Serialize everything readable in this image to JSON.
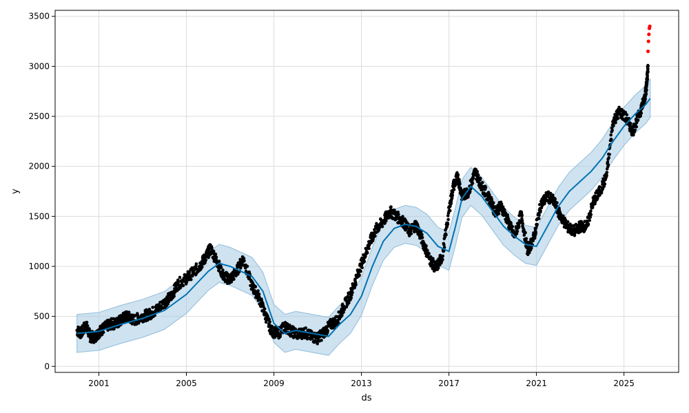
{
  "chart_data": {
    "type": "scatter",
    "xlabel": "ds",
    "ylabel": "y",
    "xlim": [
      1999.0,
      2027.5
    ],
    "ylim": [
      -60,
      3560
    ],
    "grid": true,
    "x_ticks": [
      {
        "value": 2001,
        "label": "2001"
      },
      {
        "value": 2005,
        "label": "2005"
      },
      {
        "value": 2009,
        "label": "2009"
      },
      {
        "value": 2013,
        "label": "2013"
      },
      {
        "value": 2017,
        "label": "2017"
      },
      {
        "value": 2021,
        "label": "2021"
      },
      {
        "value": 2025,
        "label": "2025"
      }
    ],
    "y_ticks": [
      {
        "value": 0,
        "label": "0"
      },
      {
        "value": 500,
        "label": "500"
      },
      {
        "value": 1000,
        "label": "1000"
      },
      {
        "value": 1500,
        "label": "1500"
      },
      {
        "value": 2000,
        "label": "2000"
      },
      {
        "value": 2500,
        "label": "2500"
      },
      {
        "value": 3000,
        "label": "3000"
      },
      {
        "value": 3500,
        "label": "3500"
      }
    ],
    "colors": {
      "observed": "#000000",
      "outlier": "#ff0000",
      "forecast_line": "#0072B2",
      "interval_fill": "#a6cbe3"
    },
    "series": [
      {
        "kind": "observed",
        "x": [
          2000.0,
          2000.2,
          2000.4,
          2000.6,
          2000.8,
          2001.0,
          2001.2,
          2001.5,
          2001.8,
          2002.0,
          2002.3,
          2002.6,
          2003.0,
          2003.3,
          2003.6,
          2004.0,
          2004.3,
          2004.6,
          2005.0,
          2005.3,
          2005.6,
          2005.9,
          2006.1,
          2006.4,
          2006.7,
          2007.0,
          2007.3,
          2007.6,
          2008.0,
          2008.3,
          2008.6,
          2008.9,
          2009.2,
          2009.5,
          2009.8,
          2010.1,
          2010.4,
          2010.7,
          2011.0,
          2011.3,
          2011.6,
          2011.9,
          2012.2,
          2012.5,
          2012.8,
          2013.1,
          2013.4,
          2013.7,
          2014.0,
          2014.3,
          2014.6,
          2014.9,
          2015.2,
          2015.5,
          2015.8,
          2016.1,
          2016.4,
          2016.7,
          2017.0,
          2017.2,
          2017.4,
          2017.6,
          2017.9,
          2018.2,
          2018.5,
          2018.8,
          2019.1,
          2019.4,
          2019.7,
          2020.0,
          2020.3,
          2020.6,
          2020.9,
          2021.2,
          2021.5,
          2021.8,
          2022.1,
          2022.4,
          2022.7,
          2023.0,
          2023.3,
          2023.6,
          2023.9,
          2024.2,
          2024.5,
          2024.8,
          2025.1,
          2025.4,
          2025.7,
          2025.9,
          2026.0,
          2026.05,
          2026.1
        ],
        "y": [
          360,
          330,
          420,
          300,
          290,
          340,
          380,
          420,
          430,
          470,
          500,
          460,
          500,
          520,
          560,
          640,
          700,
          820,
          880,
          940,
          1000,
          1100,
          1180,
          1050,
          900,
          870,
          950,
          1080,
          800,
          700,
          520,
          350,
          330,
          400,
          350,
          320,
          340,
          300,
          280,
          340,
          420,
          460,
          600,
          720,
          900,
          1080,
          1250,
          1380,
          1450,
          1550,
          1500,
          1450,
          1350,
          1420,
          1250,
          1080,
          980,
          1100,
          1550,
          1800,
          1900,
          1700,
          1750,
          1950,
          1800,
          1700,
          1550,
          1600,
          1450,
          1300,
          1520,
          1150,
          1300,
          1620,
          1700,
          1650,
          1500,
          1400,
          1350,
          1400,
          1400,
          1650,
          1750,
          1900,
          2450,
          2550,
          2480,
          2350,
          2520,
          2650,
          2750,
          2850,
          3000
        ]
      },
      {
        "kind": "outlier",
        "x": [
          2026.1,
          2026.12,
          2026.14,
          2026.16,
          2026.18
        ],
        "y": [
          3150,
          3250,
          3320,
          3380,
          3400
        ]
      },
      {
        "kind": "forecast",
        "x": [
          2000.0,
          2001.0,
          2002.0,
          2003.0,
          2004.0,
          2005.0,
          2006.0,
          2006.5,
          2007.0,
          2007.5,
          2008.0,
          2008.5,
          2009.0,
          2009.5,
          2010.0,
          2010.5,
          2011.0,
          2011.5,
          2012.0,
          2012.5,
          2013.0,
          2013.5,
          2014.0,
          2014.5,
          2015.0,
          2015.5,
          2016.0,
          2016.5,
          2017.0,
          2017.3,
          2017.6,
          2018.0,
          2018.5,
          2019.0,
          2019.5,
          2020.0,
          2020.5,
          2021.0,
          2021.5,
          2022.0,
          2022.5,
          2023.0,
          2023.5,
          2024.0,
          2024.5,
          2025.0,
          2025.5,
          2026.0,
          2026.2
        ],
        "y": [
          330,
          350,
          420,
          480,
          560,
          720,
          950,
          1030,
          1000,
          950,
          900,
          750,
          430,
          330,
          360,
          340,
          320,
          300,
          420,
          520,
          700,
          1000,
          1250,
          1380,
          1420,
          1400,
          1330,
          1200,
          1150,
          1400,
          1680,
          1800,
          1700,
          1550,
          1400,
          1300,
          1220,
          1200,
          1400,
          1600,
          1750,
          1850,
          1950,
          2080,
          2250,
          2400,
          2520,
          2620,
          2680
        ]
      }
    ]
  }
}
